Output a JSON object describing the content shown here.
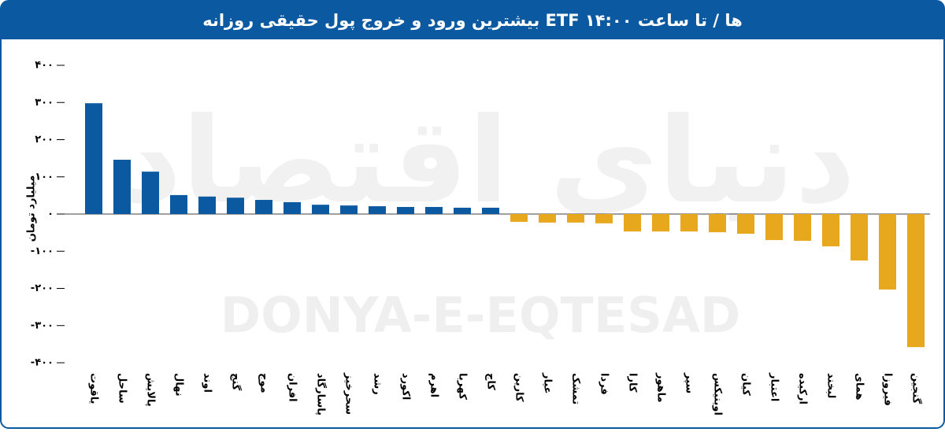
{
  "chart_data": {
    "type": "bar",
    "title": "بیشترین ورود و خروج پول حقیقی روزانه ETF ها / تا ساعت ۱۴:۰۰",
    "y_label": "میلیارد تومان",
    "watermark": "DONYA-E-EQTESAD",
    "watermark_fa": "دنیای اقتصاد",
    "categories": [
      "یاقوت",
      "ساحل",
      "پالایش",
      "نهال",
      "اوند",
      "گنج",
      "موج",
      "افران",
      "پاسارگاد",
      "سحرخیز",
      "رشد",
      "اکورد",
      "اهرم",
      "کهربا",
      "کاج",
      "کارین",
      "عیار",
      "تمشک",
      "فردا",
      "کارا",
      "ماهور",
      "سپر",
      "اوینیکس",
      "کیان",
      "اعتبار",
      "ارکیده",
      "لبخند",
      "همای",
      "فیروزا",
      "گنجین"
    ],
    "values": [
      298,
      146,
      114,
      51,
      47,
      44,
      38,
      32,
      25,
      23,
      21,
      19,
      19,
      17,
      17,
      -21,
      -23,
      -23,
      -25,
      -47,
      -47,
      -47,
      -49,
      -53,
      -70,
      -72,
      -87,
      -125,
      -203,
      -358
    ],
    "color_positive": "#0b5aa1",
    "color_negative": "#e7a81e",
    "ylim": [
      -400,
      400
    ],
    "yticks": [
      {
        "value": 400,
        "label": "۴۰۰"
      },
      {
        "value": 300,
        "label": "۳۰۰"
      },
      {
        "value": 200,
        "label": "۲۰۰"
      },
      {
        "value": 100,
        "label": "۱۰۰"
      },
      {
        "value": 0,
        "label": "۰"
      },
      {
        "value": -100,
        "label": "-۱۰۰"
      },
      {
        "value": -200,
        "label": "-۲۰۰"
      },
      {
        "value": -300,
        "label": "-۳۰۰"
      },
      {
        "value": -400,
        "label": "-۴۰۰"
      }
    ]
  }
}
